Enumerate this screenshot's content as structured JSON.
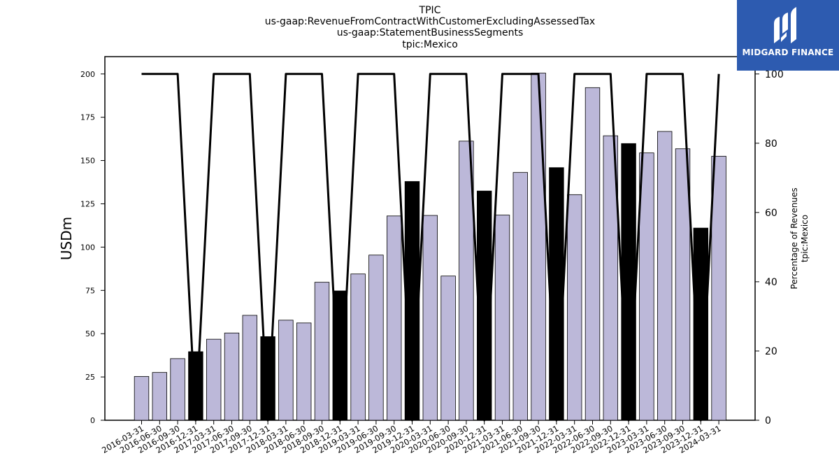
{
  "title_lines": [
    "TPIC",
    "us-gaap:RevenueFromContractWithCustomerExcludingAssessedTax",
    "us-gaap:StatementBusinessSegments",
    "tpic:Mexico"
  ],
  "logo": {
    "text": "MIDGARD FINANCE",
    "color": "#2d5bb0"
  },
  "chart_data": {
    "type": "bar",
    "title": "TPIC\nus-gaap:RevenueFromContractWithCustomerExcludingAssessedTax\nus-gaap:StatementBusinessSegments\ntpic:Mexico",
    "ylabel": "USDm",
    "y2label": [
      "Percentage of Revenues",
      "tpic:Mexico"
    ],
    "ylim": [
      0,
      210
    ],
    "y2lim": [
      0,
      105
    ],
    "yticks": [
      0,
      25,
      50,
      75,
      100,
      125,
      150,
      175,
      200
    ],
    "y2ticks": [
      0,
      20,
      40,
      60,
      80,
      100
    ],
    "categories": [
      "2016-03-31",
      "2016-06-30",
      "2016-09-30",
      "2016-12-31",
      "2017-03-31",
      "2017-06-30",
      "2017-09-30",
      "2017-12-31",
      "2018-03-31",
      "2018-06-30",
      "2018-09-30",
      "2018-12-31",
      "2019-03-31",
      "2019-06-30",
      "2019-09-30",
      "2019-12-31",
      "2020-03-31",
      "2020-06-30",
      "2020-09-30",
      "2020-12-31",
      "2021-03-31",
      "2021-06-30",
      "2021-09-30",
      "2021-12-31",
      "2022-03-31",
      "2022-06-30",
      "2022-09-30",
      "2022-12-31",
      "2023-03-31",
      "2023-06-30",
      "2023-09-30",
      "2023-12-31",
      "2024-03-31"
    ],
    "series": [
      {
        "type": "bar",
        "axis": "left",
        "values": [
          25.3,
          27.6,
          35.6,
          39.6,
          46.8,
          50.4,
          60.6,
          48.3,
          57.8,
          56.2,
          79.7,
          74.7,
          84.5,
          95.4,
          118.0,
          137.9,
          118.3,
          83.3,
          161.2,
          132.4,
          118.5,
          143.1,
          200.5,
          145.9,
          130.3,
          192.1,
          164.3,
          159.8,
          154.4,
          166.8,
          156.8,
          111.0,
          152.5
        ]
      },
      {
        "type": "line",
        "axis": "right",
        "values": [
          100,
          100,
          100,
          0,
          100,
          100,
          100,
          0,
          100,
          100,
          100,
          0,
          100,
          100,
          100,
          0,
          100,
          100,
          100,
          0,
          100,
          100,
          100,
          0,
          100,
          100,
          100,
          0,
          100,
          100,
          100,
          0,
          100
        ]
      }
    ],
    "colors": {
      "bar": "#bcb8d9",
      "bar_highlight": "#000000",
      "line": "#000000"
    },
    "grid": false
  }
}
